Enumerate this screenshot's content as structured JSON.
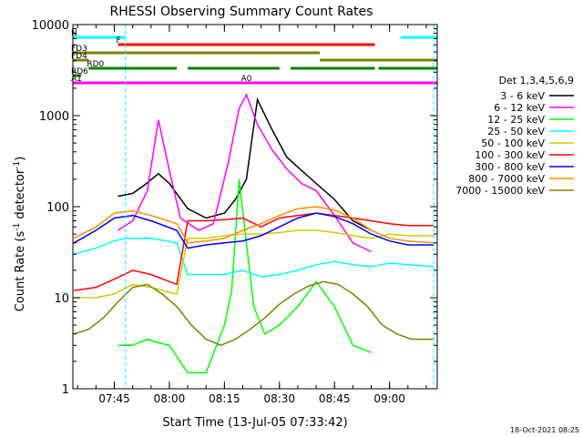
{
  "chart_data": {
    "type": "line",
    "title": "RHESSI Observing Summary Count Rates",
    "xlabel": "Start Time (13-Jul-05 07:33:42)",
    "ylabel_main": "Count Rate (s",
    "ylabel_sup1": "-1",
    "ylabel_mid": " detector",
    "ylabel_sup2": "-1",
    "ylabel_end": ")",
    "yscale": "log",
    "ylim": [
      1,
      10000
    ],
    "xlim": [
      "07:33:42",
      "09:13:00"
    ],
    "x_ticks": [
      "07:45",
      "08:00",
      "08:15",
      "08:30",
      "08:45",
      "09:00"
    ],
    "y_ticks": [
      "1",
      "10",
      "100",
      "1000",
      "10000"
    ],
    "legend_title": "Det 1,3,4,5,6,9",
    "legend_position": "right",
    "timestamp": "18-Oct-2021 08:25",
    "flag_labels": [
      "N",
      "F",
      "FD3",
      "FD4",
      "RD0",
      "RD6",
      "A1",
      "A0"
    ],
    "flags": [
      {
        "label": "N",
        "color": "#00ffff",
        "segments": [
          [
            "07:33:42",
            "07:48:00"
          ],
          [
            "09:03:00",
            "09:13:00"
          ]
        ]
      },
      {
        "label": "F",
        "color": "#ff0000",
        "segments": [
          [
            "07:46:00",
            "08:56:00"
          ]
        ]
      },
      {
        "label": "FD3",
        "color": "#808000",
        "segments": [
          [
            "07:33:42",
            "08:41:00"
          ]
        ]
      },
      {
        "label": "FD4",
        "color": "#808000",
        "segments": [
          [
            "07:33:42",
            "07:38:00"
          ],
          [
            "08:41:00",
            "09:13:00"
          ]
        ]
      },
      {
        "label": "RD0",
        "color": "#008000",
        "segments": [
          [
            "07:38:00",
            "08:02:00"
          ],
          [
            "08:05:00",
            "08:30:00"
          ],
          [
            "08:33:00",
            "08:56:00"
          ],
          [
            "08:57:00",
            "09:13:00"
          ]
        ]
      },
      {
        "label": "RD6",
        "color": "#008000",
        "segments": [
          [
            "07:33:42",
            "07:36:00"
          ]
        ]
      },
      {
        "label": "A1",
        "color": "#ff00ff",
        "segments": [
          [
            "07:33:42",
            "09:13:00"
          ]
        ]
      },
      {
        "label": "A0",
        "color": "#ff00ff",
        "segments": [
          [
            "08:20:00",
            "08:22:00"
          ]
        ]
      }
    ],
    "series": [
      {
        "name": "3 - 6 keV",
        "color": "#000000",
        "x": [
          "07:46",
          "07:50",
          "07:53",
          "07:57",
          "08:00",
          "08:05",
          "08:10",
          "08:15",
          "08:18",
          "08:21",
          "08:24",
          "08:28",
          "08:32",
          "08:36",
          "08:40",
          "08:45",
          "08:50",
          "08:55"
        ],
        "y": [
          130,
          140,
          170,
          230,
          180,
          95,
          75,
          85,
          120,
          200,
          1500,
          700,
          350,
          250,
          180,
          120,
          70,
          55
        ]
      },
      {
        "name": "6 - 12 keV",
        "color": "#ff00ff",
        "x": [
          "07:46",
          "07:50",
          "07:54",
          "07:57",
          "08:00",
          "08:03",
          "08:08",
          "08:12",
          "08:16",
          "08:19",
          "08:21",
          "08:24",
          "08:28",
          "08:32",
          "08:36",
          "08:40",
          "08:45",
          "08:50",
          "08:55"
        ],
        "y": [
          55,
          70,
          150,
          900,
          250,
          75,
          55,
          65,
          300,
          1200,
          1700,
          800,
          420,
          260,
          180,
          150,
          80,
          40,
          32
        ]
      },
      {
        "name": "12 - 25 keV",
        "color": "#00ff00",
        "x": [
          "07:46",
          "07:50",
          "07:54",
          "07:57",
          "08:00",
          "08:05",
          "08:10",
          "08:15",
          "08:17",
          "08:19",
          "08:21",
          "08:23",
          "08:26",
          "08:30",
          "08:35",
          "08:40",
          "08:45",
          "08:50",
          "08:55"
        ],
        "y": [
          3,
          3,
          3.5,
          3.2,
          3,
          1.5,
          1.5,
          5,
          12,
          200,
          40,
          8,
          4,
          5,
          8,
          15,
          8,
          3,
          2.5
        ]
      },
      {
        "name": "25 - 50 keV",
        "color": "#00ffff",
        "x": [
          "07:34",
          "07:40",
          "07:45",
          "07:48",
          "07:55",
          "08:02",
          "08:05",
          "08:10",
          "08:15",
          "08:20",
          "08:25",
          "08:30",
          "08:35",
          "08:40",
          "08:45",
          "08:50",
          "08:55",
          "09:00",
          "09:05",
          "09:12"
        ],
        "y": [
          30,
          35,
          42,
          45,
          45,
          40,
          18,
          18,
          18,
          20,
          17,
          18,
          20,
          23,
          25,
          23,
          22,
          24,
          23,
          22
        ]
      },
      {
        "name": "50 - 100 keV",
        "color": "#cccc00",
        "x": [
          "07:34",
          "07:40",
          "07:45",
          "07:50",
          "07:55",
          "08:02",
          "08:05",
          "08:10",
          "08:15",
          "08:20",
          "08:25",
          "08:30",
          "08:35",
          "08:40",
          "08:45",
          "08:50",
          "08:55",
          "09:00",
          "09:05",
          "09:12"
        ],
        "y": [
          10,
          10,
          11,
          14,
          13,
          11,
          45,
          45,
          48,
          50,
          50,
          52,
          55,
          55,
          52,
          48,
          45,
          50,
          48,
          48
        ]
      },
      {
        "name": "100 - 300 keV",
        "color": "#ff0000",
        "x": [
          "07:34",
          "07:40",
          "07:45",
          "07:50",
          "07:55",
          "08:02",
          "08:05",
          "08:10",
          "08:15",
          "08:20",
          "08:25",
          "08:30",
          "08:35",
          "08:40",
          "08:45",
          "08:50",
          "08:55",
          "09:00",
          "09:05",
          "09:12"
        ],
        "y": [
          12,
          13,
          16,
          20,
          18,
          14,
          70,
          70,
          72,
          75,
          60,
          75,
          80,
          85,
          80,
          75,
          70,
          65,
          62,
          62
        ]
      },
      {
        "name": "300 - 800 keV",
        "color": "#0000ff",
        "x": [
          "07:34",
          "07:40",
          "07:45",
          "07:50",
          "07:55",
          "08:02",
          "08:05",
          "08:10",
          "08:15",
          "08:20",
          "08:25",
          "08:30",
          "08:35",
          "08:40",
          "08:45",
          "08:50",
          "08:55",
          "09:00",
          "09:05",
          "09:12"
        ],
        "y": [
          40,
          55,
          75,
          80,
          70,
          55,
          35,
          38,
          40,
          42,
          48,
          60,
          75,
          85,
          78,
          65,
          50,
          42,
          38,
          38
        ]
      },
      {
        "name": "800 - 7000 keV",
        "color": "#ff8c00",
        "x": [
          "07:34",
          "07:40",
          "07:45",
          "07:50",
          "07:55",
          "08:02",
          "08:05",
          "08:10",
          "08:15",
          "08:20",
          "08:25",
          "08:30",
          "08:35",
          "08:40",
          "08:45",
          "08:50",
          "08:55",
          "09:00",
          "09:05",
          "09:12"
        ],
        "y": [
          45,
          60,
          85,
          90,
          80,
          65,
          40,
          42,
          45,
          55,
          65,
          80,
          95,
          100,
          92,
          75,
          55,
          45,
          42,
          40
        ]
      },
      {
        "name": "7000 - 15000 keV",
        "color": "#808000",
        "x": [
          "07:34",
          "07:38",
          "07:42",
          "07:46",
          "07:50",
          "07:54",
          "07:58",
          "08:02",
          "08:06",
          "08:10",
          "08:14",
          "08:18",
          "08:22",
          "08:26",
          "08:30",
          "08:34",
          "08:38",
          "08:42",
          "08:46",
          "08:50",
          "08:54",
          "08:58",
          "09:02",
          "09:06",
          "09:12"
        ],
        "y": [
          4,
          4.5,
          6,
          9,
          13,
          14,
          11,
          8,
          5,
          3.5,
          3,
          3.5,
          4.5,
          6,
          8.5,
          11,
          13.5,
          15,
          14,
          11,
          8,
          5,
          4,
          3.5,
          3.5
        ]
      }
    ]
  }
}
